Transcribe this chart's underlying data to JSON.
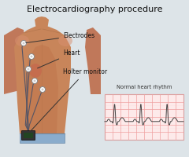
{
  "title": "Electrocardiography procedure",
  "bg_color": "#dde4e8",
  "body_fill": "#c8855a",
  "body_edge": "#a86840",
  "arm_fill": "#c8855a",
  "shadow_fill": "#b07048",
  "neck_fill": "#c8855a",
  "pants_fill": "#8aaccc",
  "pants_edge": "#6a8caa",
  "holter_fill": "#333333",
  "holter_edge": "#111111",
  "wire_color": "#555566",
  "electrode_face": "#dddddd",
  "electrode_edge": "#888888",
  "heart_color": "#cc4444",
  "label_color": "#111111",
  "arrow_color": "#333333",
  "ecg_bg": "#fff5f5",
  "ecg_border": "#999999",
  "ecg_grid_major": "#f0a0a0",
  "ecg_grid_minor": "#fad0d0",
  "ecg_line": "#444444",
  "ecg_title": "Normal heart rhythm",
  "labels": [
    "Electrodes",
    "Heart",
    "Holter monitor"
  ],
  "label_fontsize": 5.5,
  "title_fontsize": 8.0
}
